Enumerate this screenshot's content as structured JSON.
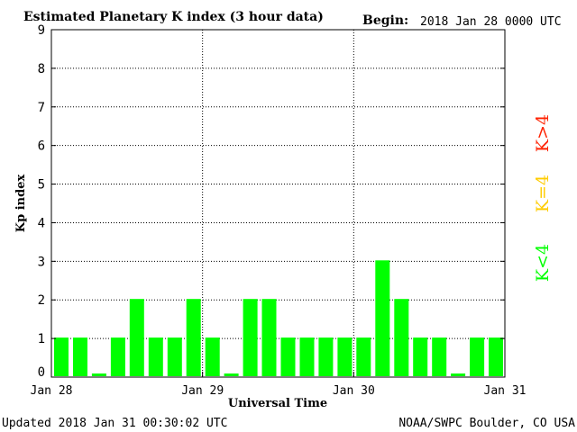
{
  "header": {
    "title": "Estimated Planetary K index (3 hour data)",
    "begin_label": "Begin:",
    "begin_value": "2018 Jan 28 0000 UTC"
  },
  "footer": {
    "updated": "Updated 2018 Jan 31 00:30:02 UTC",
    "source": "NOAA/SWPC Boulder, CO USA"
  },
  "legend": {
    "low": "K<4",
    "equal": "K=4",
    "high": "K>4"
  },
  "colors": {
    "low": "#00ff00",
    "equal": "#ffcc00",
    "high": "#ff2200"
  },
  "chart_data": {
    "type": "bar",
    "ylabel": "Kp index",
    "xlabel": "Universal Time",
    "ylim": [
      0,
      9
    ],
    "yticks": [
      "0",
      "1",
      "2",
      "3",
      "4",
      "5",
      "6",
      "7",
      "8",
      "9"
    ],
    "xlim_days": [
      0,
      3
    ],
    "xticks": [
      "Jan 28",
      "Jan 29",
      "Jan 30",
      "Jan 31"
    ],
    "grid": true,
    "interval_hours": 3,
    "values": [
      1,
      1,
      0,
      1,
      2,
      1,
      1,
      2,
      1,
      0,
      2,
      2,
      1,
      1,
      1,
      1,
      1,
      3,
      2,
      1,
      1,
      0,
      1,
      1
    ]
  }
}
